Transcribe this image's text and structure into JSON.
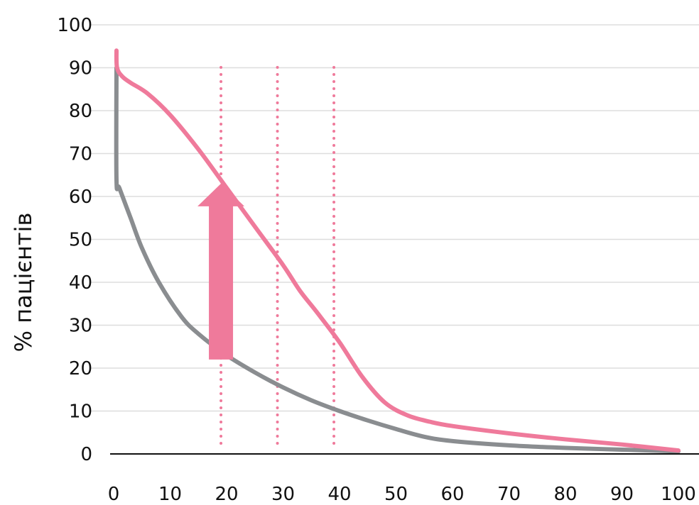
{
  "chart_data": {
    "type": "line",
    "ylabel": "% пацієнтів",
    "xlabel": "",
    "xlim": [
      0,
      100
    ],
    "ylim": [
      0,
      100
    ],
    "x_ticks": [
      "0",
      "10",
      "20",
      "30",
      "40",
      "50",
      "60",
      "70",
      "80",
      "90",
      "100"
    ],
    "y_ticks": [
      "0",
      "10",
      "20",
      "30",
      "40",
      "50",
      "60",
      "70",
      "80",
      "90",
      "100"
    ],
    "grid": "horizontal",
    "colors": {
      "pink": "#ef7a9b",
      "gray": "#8a8d90",
      "grid": "#dddddd",
      "axis": "#111111"
    },
    "series": [
      {
        "color": "#ef7a9b",
        "points": [
          [
            0.5,
            94
          ],
          [
            0.6,
            90
          ],
          [
            1.5,
            88
          ],
          [
            3,
            86.5
          ],
          [
            6,
            84
          ],
          [
            10,
            79
          ],
          [
            15,
            71
          ],
          [
            20,
            62
          ],
          [
            25,
            53
          ],
          [
            30,
            44
          ],
          [
            33,
            38
          ],
          [
            36,
            33
          ],
          [
            40,
            26
          ],
          [
            44,
            18
          ],
          [
            48,
            12
          ],
          [
            52,
            9
          ],
          [
            56,
            7.5
          ],
          [
            60,
            6.5
          ],
          [
            70,
            4.8
          ],
          [
            80,
            3.4
          ],
          [
            90,
            2.2
          ],
          [
            100,
            0.8
          ]
        ]
      },
      {
        "color": "#8a8d90",
        "points": [
          [
            0.5,
            90
          ],
          [
            0.5,
            64
          ],
          [
            1,
            62
          ],
          [
            3,
            55
          ],
          [
            5,
            48
          ],
          [
            8,
            40
          ],
          [
            12,
            32
          ],
          [
            15,
            28
          ],
          [
            20,
            23
          ],
          [
            25,
            19
          ],
          [
            30,
            15.5
          ],
          [
            35,
            12.5
          ],
          [
            40,
            10
          ],
          [
            45,
            7.8
          ],
          [
            50,
            5.8
          ],
          [
            55,
            4
          ],
          [
            60,
            3
          ],
          [
            70,
            2
          ],
          [
            80,
            1.4
          ],
          [
            90,
            1
          ],
          [
            100,
            0.6
          ]
        ]
      }
    ],
    "reference_lines_x": [
      19,
      29,
      39
    ],
    "arrow": {
      "x": 19,
      "from": 22,
      "to": 63,
      "color": "#ef7a9b"
    }
  }
}
